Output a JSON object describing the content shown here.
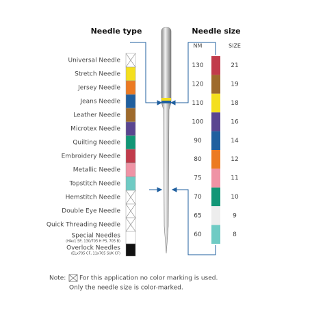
{
  "needle_type": {
    "title": "Needle type",
    "items": [
      {
        "label": "Universal Needle",
        "color": null
      },
      {
        "label": "Stretch Needle",
        "color": "#f4df1e"
      },
      {
        "label": "Jersey Needle",
        "color": "#ec7a22"
      },
      {
        "label": "Jeans Needle",
        "color": "#1f5f9f"
      },
      {
        "label": "Leather Needle",
        "color": "#9e6a2c"
      },
      {
        "label": "Microtex Needle",
        "color": "#5a4590"
      },
      {
        "label": "Quilting Needle",
        "color": "#119676"
      },
      {
        "label": "Embroidery Needle",
        "color": "#c13b4b"
      },
      {
        "label": "Metallic Needle",
        "color": "#ef93a5"
      },
      {
        "label": "Topstitch Needle",
        "color": "#6fcbc4"
      },
      {
        "label": "Hemstitch Needle",
        "color": null
      },
      {
        "label": "Double Eye Needle",
        "color": null
      },
      {
        "label": "Quick Threading Needle",
        "color": null
      },
      {
        "label": "Special Needles",
        "sublabel": "(HAx1 SP, 130/705 H PS, 705 B)",
        "color": "#ffffff"
      },
      {
        "label": "Overlock Needles",
        "sublabel": "(ELx705 CF, 11x705 SUK CF)",
        "color": "#111111"
      }
    ]
  },
  "needle_size": {
    "title": "Needle size",
    "nm_header": "NM",
    "size_header": "SIZE",
    "rows": [
      {
        "nm": 130,
        "size": 21,
        "color": "#c13b4b"
      },
      {
        "nm": 120,
        "size": 19,
        "color": "#9e6a2c"
      },
      {
        "nm": 110,
        "size": 18,
        "color": "#f4df1e"
      },
      {
        "nm": 100,
        "size": 16,
        "color": "#5a4590"
      },
      {
        "nm": 90,
        "size": 14,
        "color": "#1f5f9f"
      },
      {
        "nm": 80,
        "size": 12,
        "color": "#ec7a22"
      },
      {
        "nm": 75,
        "size": 11,
        "color": "#ef93a5"
      },
      {
        "nm": 70,
        "size": 10,
        "color": "#119676"
      },
      {
        "nm": 65,
        "size": 9,
        "color": "#ededed"
      },
      {
        "nm": 60,
        "size": 8,
        "color": "#6fcbc4"
      }
    ]
  },
  "note": {
    "label": "Note:",
    "lines": [
      "For this application no color marking is used.",
      "Only the needle size is color-marked."
    ]
  }
}
